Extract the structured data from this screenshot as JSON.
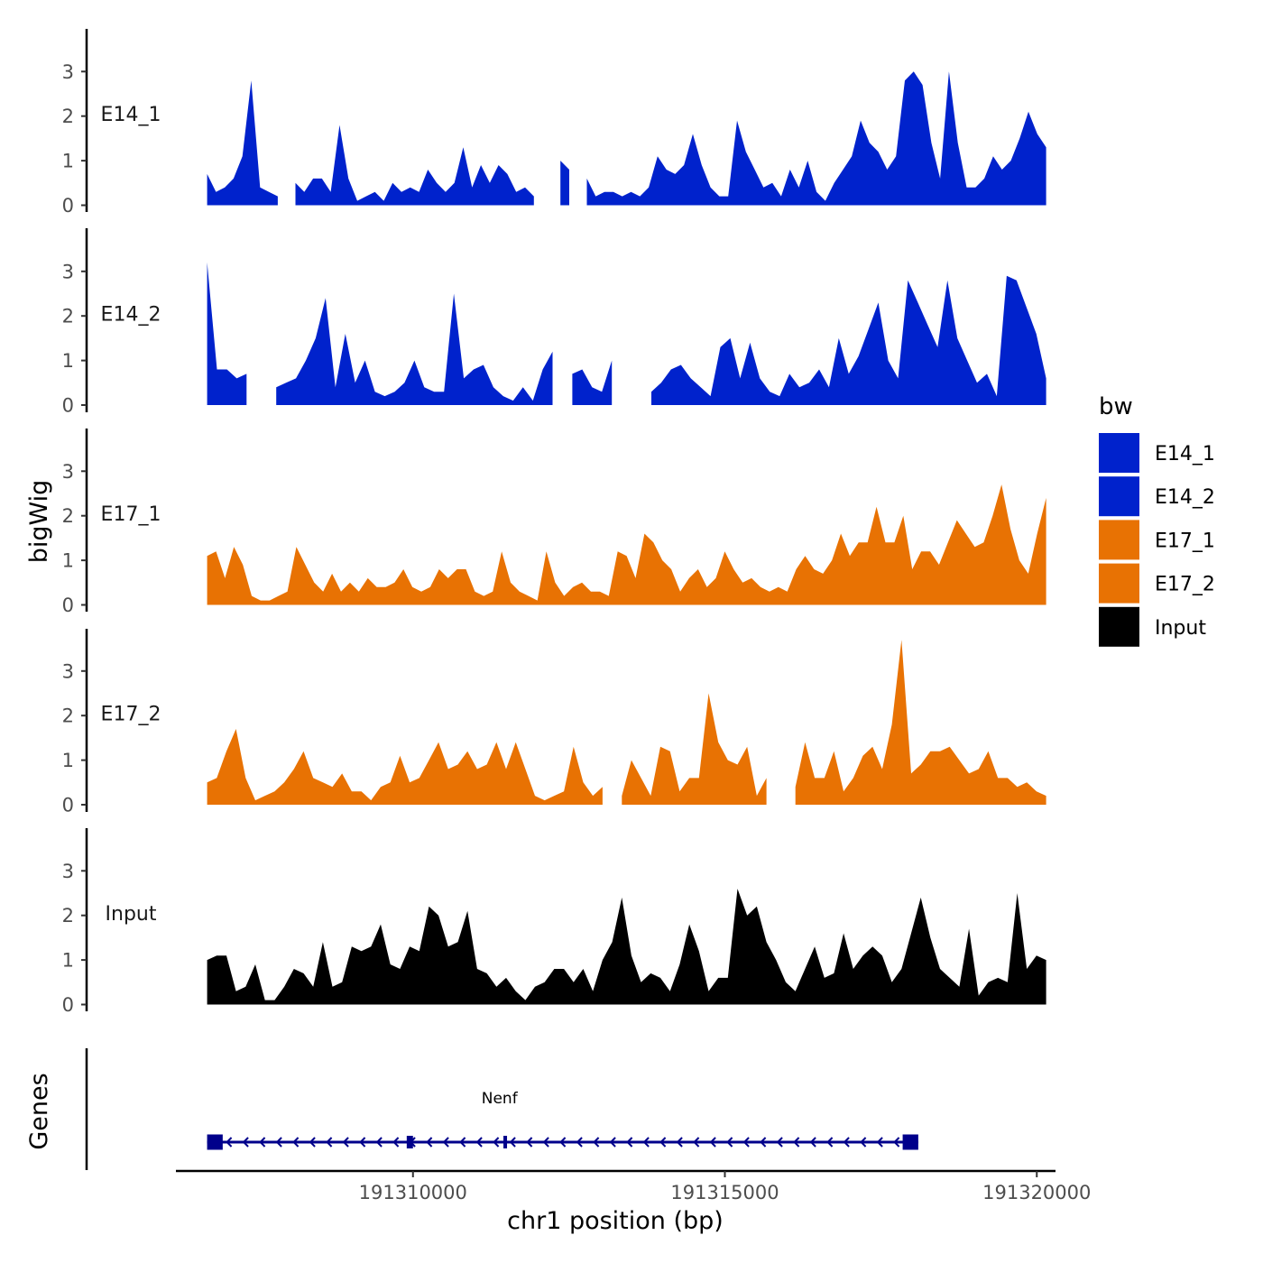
{
  "chart_data": {
    "type": "area",
    "title": "",
    "xlabel": "chr1 position (bp)",
    "ylabel": "bigWig",
    "genes_label": "Genes",
    "xlim": [
      191306200,
      191320300
    ],
    "x_ticks": [
      {
        "value": 191310000,
        "label": "191310000"
      },
      {
        "value": 191315000,
        "label": "191315000"
      },
      {
        "value": 191320000,
        "label": "191320000"
      }
    ],
    "ylim": [
      0,
      4
    ],
    "y_ticks": [
      {
        "value": 0,
        "label": "0"
      },
      {
        "value": 1,
        "label": "1"
      },
      {
        "value": 2,
        "label": "2"
      },
      {
        "value": 3,
        "label": "3"
      }
    ],
    "x_start": 191306700,
    "x_end": 191320150,
    "step": 250,
    "legend": {
      "title": "bw",
      "entries": [
        {
          "label": "E14_1",
          "color": "#0022CC"
        },
        {
          "label": "E14_2",
          "color": "#0022CC"
        },
        {
          "label": "E17_1",
          "color": "#E87203"
        },
        {
          "label": "E17_2",
          "color": "#E87203"
        },
        {
          "label": "Input",
          "color": "#000000"
        }
      ]
    },
    "series": [
      {
        "name": "E14_1",
        "color": "#0022CC",
        "values": [
          0.7,
          0.3,
          0.4,
          0.6,
          1.1,
          2.8,
          0.4,
          0.3,
          0.2,
          null,
          0.5,
          0.3,
          0.6,
          0.6,
          0.3,
          1.8,
          0.6,
          0.1,
          0.2,
          0.3,
          0.1,
          0.5,
          0.3,
          0.4,
          0.3,
          0.8,
          0.5,
          0.3,
          0.5,
          1.3,
          0.4,
          0.9,
          0.5,
          0.9,
          0.7,
          0.3,
          0.4,
          0.2,
          null,
          null,
          1.0,
          0.8,
          null,
          0.6,
          0.2,
          0.3,
          0.3,
          0.2,
          0.3,
          0.2,
          0.4,
          1.1,
          0.8,
          0.7,
          0.9,
          1.6,
          0.9,
          0.4,
          0.2,
          0.2,
          1.9,
          1.2,
          0.8,
          0.4,
          0.5,
          0.2,
          0.8,
          0.4,
          1.0,
          0.3,
          0.1,
          0.5,
          0.8,
          1.1,
          1.9,
          1.4,
          1.2,
          0.8,
          1.1,
          2.8,
          3.0,
          2.7,
          1.4,
          0.6,
          3.0,
          1.4,
          0.4,
          0.4,
          0.6,
          1.1,
          0.8,
          1.0,
          1.5,
          2.1,
          1.6,
          1.3
        ]
      },
      {
        "name": "E14_2",
        "color": "#0022CC",
        "values": [
          3.2,
          0.8,
          0.8,
          0.6,
          0.7,
          null,
          null,
          0.4,
          0.5,
          0.6,
          1.0,
          1.5,
          2.4,
          0.4,
          1.6,
          0.5,
          1.0,
          0.3,
          0.2,
          0.3,
          0.5,
          1.0,
          0.4,
          0.3,
          0.3,
          2.5,
          0.6,
          0.8,
          0.9,
          0.4,
          0.2,
          0.1,
          0.4,
          0.1,
          0.8,
          1.2,
          null,
          0.7,
          0.8,
          0.4,
          0.3,
          1.0,
          null,
          null,
          null,
          0.3,
          0.5,
          0.8,
          0.9,
          0.6,
          0.4,
          0.2,
          1.3,
          1.5,
          0.6,
          1.4,
          0.6,
          0.3,
          0.2,
          0.7,
          0.4,
          0.5,
          0.8,
          0.4,
          1.5,
          0.7,
          1.1,
          1.7,
          2.3,
          1.0,
          0.6,
          2.8,
          2.3,
          1.8,
          1.3,
          2.8,
          1.5,
          1.0,
          0.5,
          0.7,
          0.2,
          2.9,
          2.8,
          2.2,
          1.6,
          0.6
        ]
      },
      {
        "name": "E17_1",
        "color": "#E87203",
        "values": [
          1.1,
          1.2,
          0.6,
          1.3,
          0.9,
          0.2,
          0.1,
          0.1,
          0.2,
          0.3,
          1.3,
          0.9,
          0.5,
          0.3,
          0.7,
          0.3,
          0.5,
          0.3,
          0.6,
          0.4,
          0.4,
          0.5,
          0.8,
          0.4,
          0.3,
          0.4,
          0.8,
          0.6,
          0.8,
          0.8,
          0.3,
          0.2,
          0.3,
          1.2,
          0.5,
          0.3,
          0.2,
          0.1,
          1.2,
          0.5,
          0.2,
          0.4,
          0.5,
          0.3,
          0.3,
          0.2,
          1.2,
          1.1,
          0.6,
          1.6,
          1.4,
          1.0,
          0.8,
          0.3,
          0.6,
          0.8,
          0.4,
          0.6,
          1.2,
          0.8,
          0.5,
          0.6,
          0.4,
          0.3,
          0.4,
          0.3,
          0.8,
          1.1,
          0.8,
          0.7,
          1.0,
          1.6,
          1.1,
          1.4,
          1.4,
          2.2,
          1.4,
          1.4,
          2.0,
          0.8,
          1.2,
          1.2,
          0.9,
          1.4,
          1.9,
          1.6,
          1.3,
          1.4,
          2.0,
          2.7,
          1.7,
          1.0,
          0.7,
          1.6,
          2.4
        ]
      },
      {
        "name": "E17_2",
        "color": "#E87203",
        "values": [
          0.5,
          0.6,
          1.2,
          1.7,
          0.6,
          0.1,
          0.2,
          0.3,
          0.5,
          0.8,
          1.2,
          0.6,
          0.5,
          0.4,
          0.7,
          0.3,
          0.3,
          0.1,
          0.4,
          0.5,
          1.1,
          0.5,
          0.6,
          1.0,
          1.4,
          0.8,
          0.9,
          1.2,
          0.8,
          0.9,
          1.4,
          0.8,
          1.4,
          0.8,
          0.2,
          0.1,
          0.2,
          0.3,
          1.3,
          0.5,
          0.2,
          0.4,
          null,
          0.2,
          1.0,
          0.6,
          0.2,
          1.3,
          1.2,
          0.3,
          0.6,
          0.6,
          2.5,
          1.4,
          1.0,
          0.9,
          1.3,
          0.2,
          0.6,
          null,
          null,
          0.4,
          1.4,
          0.6,
          0.6,
          1.2,
          0.3,
          0.6,
          1.1,
          1.3,
          0.8,
          1.8,
          3.7,
          0.7,
          0.9,
          1.2,
          1.2,
          1.3,
          1.0,
          0.7,
          0.8,
          1.2,
          0.6,
          0.6,
          0.4,
          0.5,
          0.3,
          0.2
        ]
      },
      {
        "name": "Input",
        "color": "#000000",
        "values": [
          1.0,
          1.1,
          1.1,
          0.3,
          0.4,
          0.9,
          0.1,
          0.1,
          0.4,
          0.8,
          0.7,
          0.4,
          1.4,
          0.4,
          0.5,
          1.3,
          1.2,
          1.3,
          1.8,
          0.9,
          0.8,
          1.3,
          1.2,
          2.2,
          2.0,
          1.3,
          1.4,
          2.1,
          0.8,
          0.7,
          0.4,
          0.6,
          0.3,
          0.1,
          0.4,
          0.5,
          0.8,
          0.8,
          0.5,
          0.8,
          0.3,
          1.0,
          1.4,
          2.4,
          1.1,
          0.5,
          0.7,
          0.6,
          0.3,
          0.9,
          1.8,
          1.2,
          0.3,
          0.6,
          0.6,
          2.6,
          2.0,
          2.2,
          1.4,
          1.0,
          0.5,
          0.3,
          0.8,
          1.3,
          0.6,
          0.7,
          1.6,
          0.8,
          1.1,
          1.3,
          1.1,
          0.5,
          0.8,
          1.6,
          2.4,
          1.5,
          0.8,
          0.6,
          0.4,
          1.7,
          0.2,
          0.5,
          0.6,
          0.5,
          2.5,
          0.8,
          1.1,
          1.0
        ]
      }
    ],
    "genes": [
      {
        "name": "Nenf",
        "start": 191306700,
        "end": 191318100,
        "strand": "-",
        "color": "#00008B",
        "exons": [
          {
            "start": 191306700,
            "end": 191306950
          },
          {
            "start": 191309900,
            "end": 191310000
          },
          {
            "start": 191311450,
            "end": 191311500
          },
          {
            "start": 191317850,
            "end": 191318100
          }
        ]
      }
    ]
  }
}
